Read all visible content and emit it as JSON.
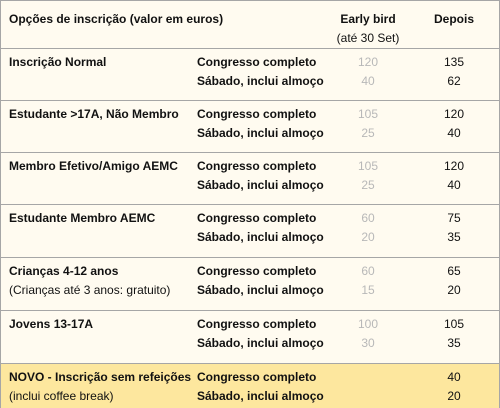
{
  "header": {
    "title": "Opções de inscrição (valor em euros)",
    "early_bird": "Early bird",
    "early_bird_note": "(até 30 Set)",
    "after": "Depois"
  },
  "groups": [
    {
      "label": "Inscrição Normal",
      "rows": [
        {
          "option": "Congresso completo",
          "early_bird": 120,
          "after": 135
        },
        {
          "option": "Sábado, inclui almoço",
          "early_bird": 40,
          "after": 62
        }
      ]
    },
    {
      "label": "Estudante >17A, Não Membro",
      "rows": [
        {
          "option": "Congresso completo",
          "early_bird": 105,
          "after": 120
        },
        {
          "option": "Sábado, inclui almoço",
          "early_bird": 25,
          "after": 40
        }
      ]
    },
    {
      "label": "Membro Efetivo/Amigo AEMC",
      "rows": [
        {
          "option": "Congresso completo",
          "early_bird": 105,
          "after": 120
        },
        {
          "option": "Sábado, inclui almoço",
          "early_bird": 25,
          "after": 40
        }
      ]
    },
    {
      "label": "Estudante Membro AEMC",
      "rows": [
        {
          "option": "Congresso completo",
          "early_bird": 60,
          "after": 75
        },
        {
          "option": "Sábado, inclui almoço",
          "early_bird": 20,
          "after": 35
        }
      ]
    },
    {
      "label": "Crianças 4-12 anos",
      "note": "(Crianças até 3 anos: gratuito)",
      "rows": [
        {
          "option": "Congresso completo",
          "early_bird": 60,
          "after": 65
        },
        {
          "option": "Sábado, inclui almoço",
          "early_bird": 15,
          "after": 20
        }
      ]
    },
    {
      "label": "Jovens 13-17A",
      "rows": [
        {
          "option": "Congresso completo",
          "early_bird": 100,
          "after": 105
        },
        {
          "option": "Sábado, inclui almoço",
          "early_bird": 30,
          "after": 35
        }
      ]
    },
    {
      "label": "NOVO - Inscrição sem refeições",
      "note": "(inclui coffee break)",
      "highlight": true,
      "rows": [
        {
          "option": "Congresso completo",
          "after": 40
        },
        {
          "option": "Sábado, inclui almoço",
          "after": 20
        }
      ]
    }
  ]
}
